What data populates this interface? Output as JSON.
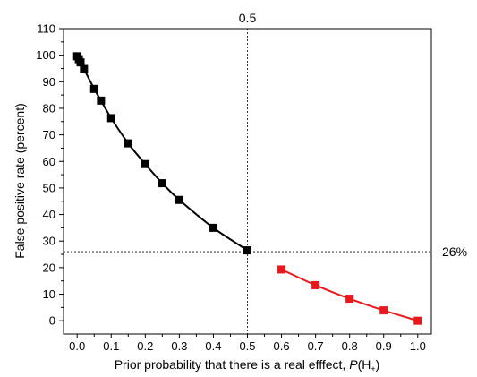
{
  "chart_data": {
    "type": "scatter",
    "xlabel_prefix": "Prior probability that there is a real efffect, ",
    "xlabel_italic": "P",
    "xlabel_paren_open": "(H",
    "xlabel_sub": "+",
    "xlabel_paren_close": ")",
    "ylabel": "False positive rate (percent)",
    "xlim": [
      -0.04,
      1.04
    ],
    "ylim": [
      -5,
      110
    ],
    "x_ticks": [
      "0.0",
      "0.1",
      "0.2",
      "0.3",
      "0.4",
      "0.5",
      "0.6",
      "0.7",
      "0.8",
      "0.9",
      "1.0"
    ],
    "y_ticks": [
      "0",
      "10",
      "20",
      "30",
      "40",
      "50",
      "60",
      "70",
      "80",
      "90",
      "100",
      "110"
    ],
    "vline": {
      "x": 0.5,
      "label": "0.5"
    },
    "hline": {
      "y": 26,
      "label": "26%"
    },
    "series": [
      {
        "color": "#000000",
        "x": [
          0.0,
          0.005,
          0.01,
          0.02,
          0.05,
          0.07,
          0.1,
          0.15,
          0.2,
          0.25,
          0.3,
          0.4,
          0.5
        ],
        "y": [
          99.6,
          98.5,
          97.3,
          94.8,
          87.3,
          82.9,
          76.3,
          66.8,
          59.0,
          51.8,
          45.5,
          35.0,
          26.5
        ]
      },
      {
        "color": "#e8191c",
        "x": [
          0.6,
          0.7,
          0.8,
          0.9,
          1.0
        ],
        "y": [
          19.3,
          13.4,
          8.3,
          3.9,
          0.0
        ]
      }
    ]
  }
}
